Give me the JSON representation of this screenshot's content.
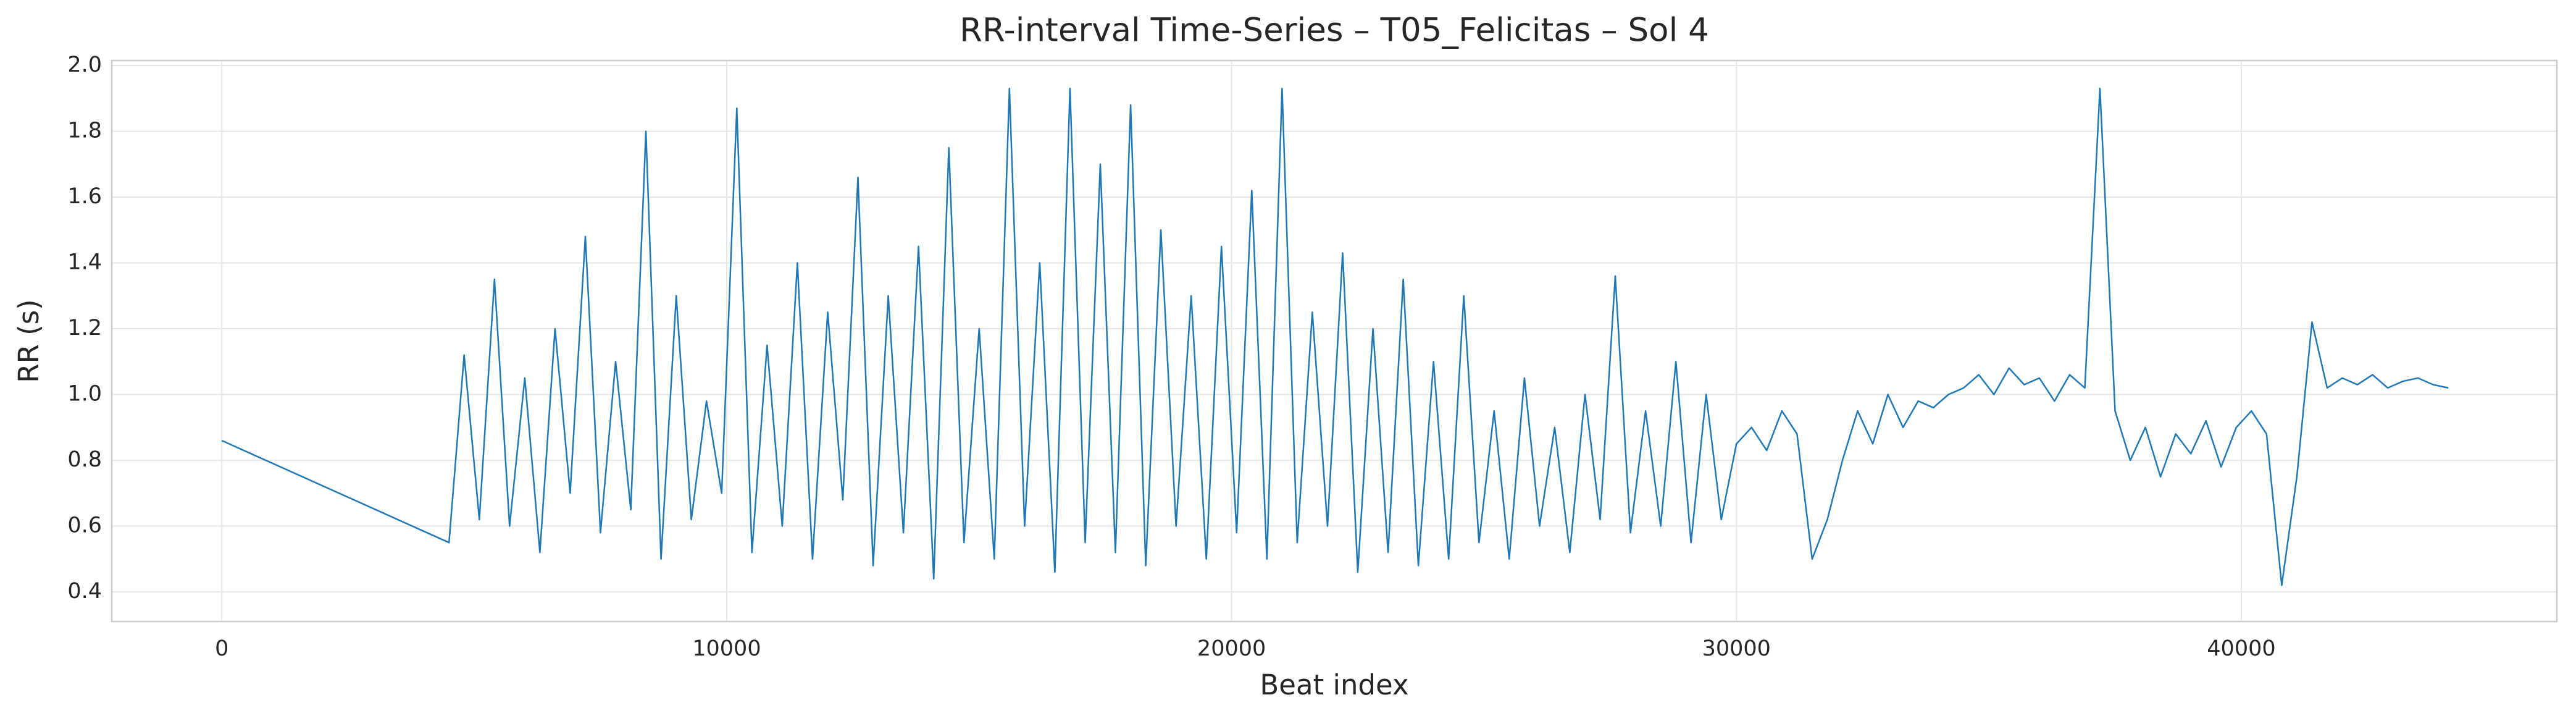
{
  "chart_data": {
    "type": "line",
    "title": "RR-interval Time-Series – T05_Felicitas – Sol 4",
    "x_label": "Beat index",
    "y_label": "RR (s)",
    "color": "#1f77b4",
    "grid": true,
    "xlim": [
      -2180,
      46250
    ],
    "ylim": [
      0.31,
      2.015
    ],
    "xticks": [
      0,
      10000,
      20000,
      30000,
      40000
    ],
    "yticks": [
      0.4,
      0.6,
      0.8,
      {
        "value": 1,
        "label": "1.0"
      },
      1.2,
      1.4,
      1.6,
      1.8,
      {
        "value": 2,
        "label": "2.0"
      }
    ],
    "x": [
      0,
      4500,
      4800,
      5100,
      5400,
      5700,
      6000,
      6300,
      6600,
      6900,
      7200,
      7500,
      7800,
      8100,
      8400,
      8700,
      9000,
      9300,
      9600,
      9900,
      10200,
      10500,
      10800,
      11100,
      11400,
      11700,
      12000,
      12300,
      12600,
      12900,
      13200,
      13500,
      13800,
      14100,
      14400,
      14700,
      15000,
      15300,
      15600,
      15900,
      16200,
      16500,
      16800,
      17100,
      17400,
      17700,
      18000,
      18300,
      18600,
      18900,
      19200,
      19500,
      19800,
      20100,
      20400,
      20700,
      21000,
      21300,
      21600,
      21900,
      22200,
      22500,
      22800,
      23100,
      23400,
      23700,
      24000,
      24300,
      24600,
      24900,
      25200,
      25500,
      25800,
      26100,
      26400,
      26700,
      27000,
      27300,
      27600,
      27900,
      28200,
      28500,
      28800,
      29100,
      29400,
      29700,
      30000,
      30300,
      30600,
      30900,
      31200,
      31500,
      31800,
      32100,
      32400,
      32700,
      33000,
      33300,
      33600,
      33900,
      34200,
      34500,
      34800,
      35100,
      35400,
      35700,
      36000,
      36300,
      36600,
      36900,
      37200,
      37500,
      37800,
      38100,
      38400,
      38700,
      39000,
      39300,
      39600,
      39900,
      40200,
      40500,
      40800,
      41100,
      41400,
      41700,
      42000,
      42300,
      42600,
      42900,
      43200,
      43500,
      43800,
      44100
    ],
    "values": [
      0.86,
      0.55,
      1.12,
      0.62,
      1.35,
      0.6,
      1.05,
      0.52,
      1.2,
      0.7,
      1.48,
      0.58,
      1.1,
      0.65,
      1.8,
      0.5,
      1.3,
      0.62,
      0.98,
      0.7,
      1.87,
      0.52,
      1.15,
      0.6,
      1.4,
      0.5,
      1.25,
      0.68,
      1.66,
      0.48,
      1.3,
      0.58,
      1.45,
      0.44,
      1.75,
      0.55,
      1.2,
      0.5,
      1.93,
      0.6,
      1.4,
      0.46,
      1.93,
      0.55,
      1.7,
      0.52,
      1.88,
      0.48,
      1.5,
      0.6,
      1.3,
      0.5,
      1.45,
      0.58,
      1.62,
      0.5,
      1.93,
      0.55,
      1.25,
      0.6,
      1.43,
      0.46,
      1.2,
      0.52,
      1.35,
      0.48,
      1.1,
      0.5,
      1.3,
      0.55,
      0.95,
      0.5,
      1.05,
      0.6,
      0.9,
      0.52,
      1.0,
      0.62,
      1.36,
      0.58,
      0.95,
      0.6,
      1.1,
      0.55,
      1.0,
      0.62,
      0.85,
      0.9,
      0.83,
      0.95,
      0.88,
      0.5,
      0.62,
      0.8,
      0.95,
      0.85,
      1.0,
      0.9,
      0.98,
      0.96,
      1.0,
      1.02,
      1.06,
      1.0,
      1.08,
      1.03,
      1.05,
      0.98,
      1.06,
      1.02,
      1.93,
      0.95,
      0.8,
      0.9,
      0.75,
      0.88,
      0.82,
      0.92,
      0.78,
      0.9,
      0.95,
      0.88,
      0.42,
      0.75,
      1.22,
      1.02,
      1.05,
      1.03,
      1.06,
      1.02,
      1.04,
      1.05,
      1.03,
      1.02
    ]
  }
}
